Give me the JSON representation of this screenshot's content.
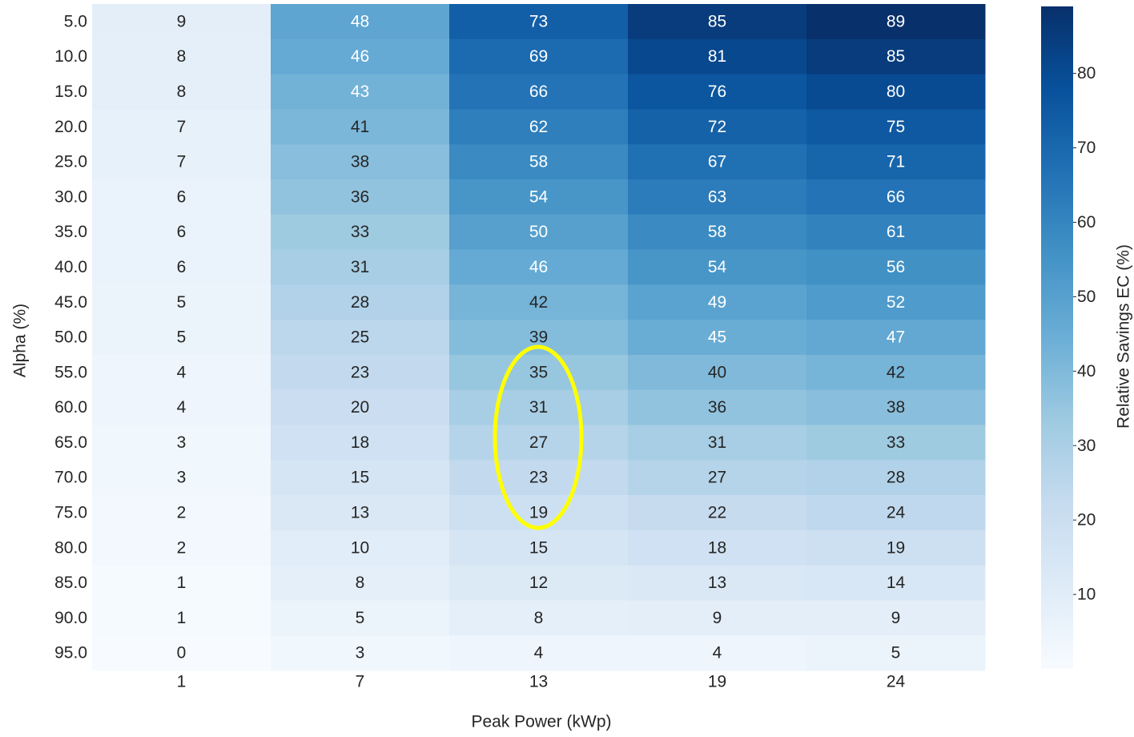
{
  "chart_data": {
    "type": "heatmap",
    "xlabel": "Peak Power (kWp)",
    "ylabel": "Alpha (%)",
    "colorbar_label": "Relative Savings EC (%)",
    "colormap": "Blues",
    "x_categories": [
      "1",
      "7",
      "13",
      "19",
      "24"
    ],
    "y_categories": [
      "5.0",
      "10.0",
      "15.0",
      "20.0",
      "25.0",
      "30.0",
      "35.0",
      "40.0",
      "45.0",
      "50.0",
      "55.0",
      "60.0",
      "65.0",
      "70.0",
      "75.0",
      "80.0",
      "85.0",
      "90.0",
      "95.0"
    ],
    "values": [
      [
        9,
        48,
        73,
        85,
        89
      ],
      [
        8,
        46,
        69,
        81,
        85
      ],
      [
        8,
        43,
        66,
        76,
        80
      ],
      [
        7,
        41,
        62,
        72,
        75
      ],
      [
        7,
        38,
        58,
        67,
        71
      ],
      [
        6,
        36,
        54,
        63,
        66
      ],
      [
        6,
        33,
        50,
        58,
        61
      ],
      [
        6,
        31,
        46,
        54,
        56
      ],
      [
        5,
        28,
        42,
        49,
        52
      ],
      [
        5,
        25,
        39,
        45,
        47
      ],
      [
        4,
        23,
        35,
        40,
        42
      ],
      [
        4,
        20,
        31,
        36,
        38
      ],
      [
        3,
        18,
        27,
        31,
        33
      ],
      [
        3,
        15,
        23,
        27,
        28
      ],
      [
        2,
        13,
        19,
        22,
        24
      ],
      [
        2,
        10,
        15,
        18,
        19
      ],
      [
        1,
        8,
        12,
        13,
        14
      ],
      [
        1,
        5,
        8,
        9,
        9
      ],
      [
        0,
        3,
        4,
        4,
        5
      ]
    ],
    "clim": [
      0,
      89
    ],
    "cticks": [
      10,
      20,
      30,
      40,
      50,
      60,
      70,
      80
    ]
  }
}
